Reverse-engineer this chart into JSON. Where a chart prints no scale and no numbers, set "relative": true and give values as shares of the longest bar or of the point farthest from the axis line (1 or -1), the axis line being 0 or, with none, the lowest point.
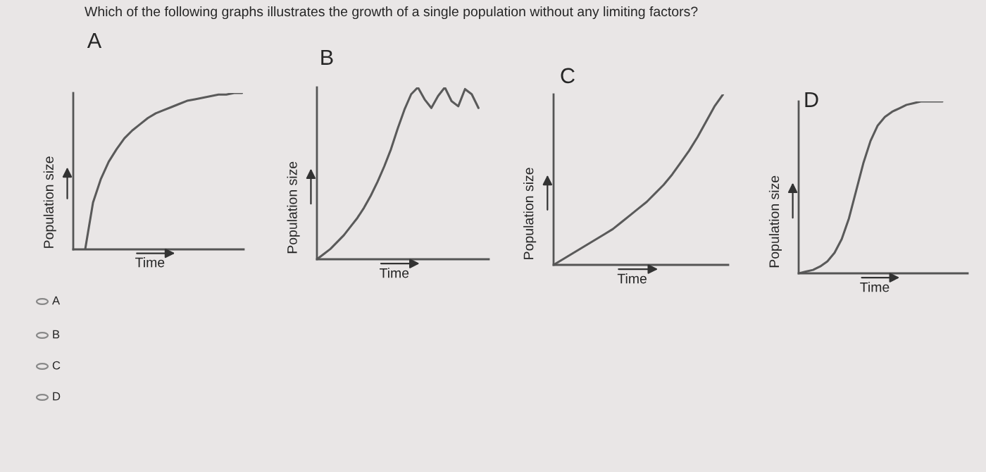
{
  "chart_data": [
    {
      "type": "line",
      "title": "A",
      "xlabel": "Time",
      "ylabel": "Population size",
      "relative": true,
      "color": "#5a5a5a",
      "categories": [
        null,
        null,
        null,
        null,
        null,
        null,
        null,
        null,
        null,
        null,
        null,
        null,
        null,
        null,
        null,
        null,
        null,
        null,
        null,
        null,
        null
      ],
      "values": [
        0,
        0.3,
        0.45,
        0.56,
        0.64,
        0.71,
        0.76,
        0.8,
        0.84,
        0.87,
        0.89,
        0.91,
        0.93,
        0.95,
        0.96,
        0.97,
        0.98,
        0.99,
        0.99,
        1.0,
        1.0
      ],
      "annotations": [
        "Which of the following graphs illustrates the growth of a single population without any limiting factors?",
        "A",
        "B",
        "C",
        "D"
      ]
    },
    {
      "type": "line",
      "title": "B",
      "xlabel": "Time",
      "ylabel": "Population size",
      "relative": true,
      "color": "#5a5a5a",
      "categories": [
        null,
        null,
        null,
        null,
        null,
        null,
        null,
        null,
        null,
        null,
        null,
        null,
        null,
        null,
        null,
        null,
        null,
        null,
        null,
        null,
        null,
        null,
        null,
        null,
        null
      ],
      "values": [
        0,
        0.03,
        0.06,
        0.1,
        0.14,
        0.19,
        0.24,
        0.3,
        0.37,
        0.45,
        0.54,
        0.64,
        0.76,
        0.87,
        0.96,
        1.0,
        0.93,
        0.88,
        0.95,
        1.0,
        0.92,
        0.89,
        0.99,
        0.96,
        0.88
      ]
    },
    {
      "type": "line",
      "title": "C",
      "xlabel": "Time",
      "ylabel": "Population size",
      "relative": true,
      "color": "#5a5a5a",
      "categories": [
        null,
        null,
        null,
        null,
        null,
        null,
        null,
        null,
        null,
        null,
        null,
        null,
        null,
        null,
        null,
        null,
        null,
        null,
        null,
        null,
        null
      ],
      "values": [
        0,
        0.03,
        0.06,
        0.09,
        0.12,
        0.15,
        0.18,
        0.21,
        0.25,
        0.29,
        0.33,
        0.37,
        0.42,
        0.47,
        0.53,
        0.6,
        0.67,
        0.75,
        0.84,
        0.93,
        1.0
      ]
    },
    {
      "type": "line",
      "title": "D",
      "xlabel": "Time",
      "ylabel": "Population size",
      "relative": true,
      "color": "#5a5a5a",
      "categories": [
        null,
        null,
        null,
        null,
        null,
        null,
        null,
        null,
        null,
        null,
        null,
        null,
        null,
        null,
        null,
        null,
        null,
        null,
        null,
        null,
        null
      ],
      "values": [
        0,
        0.01,
        0.02,
        0.04,
        0.07,
        0.12,
        0.2,
        0.32,
        0.48,
        0.64,
        0.77,
        0.86,
        0.91,
        0.94,
        0.96,
        0.98,
        0.99,
        1.0,
        1.0,
        1.0,
        1.0
      ]
    }
  ]
}
